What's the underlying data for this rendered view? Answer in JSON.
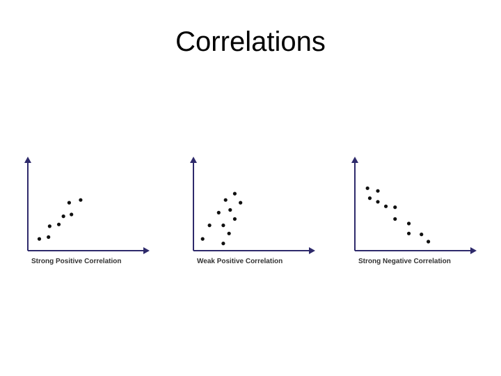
{
  "slide": {
    "title": "Correlations"
  },
  "colors": {
    "axis": "#2e2a6b",
    "point": "#111111",
    "caption": "#333333"
  },
  "chart_data": [
    {
      "type": "scatter",
      "title": "Strong Positive Correlation",
      "xlim": [
        0,
        10
      ],
      "ylim": [
        0,
        10
      ],
      "grid": false,
      "points": [
        [
          1.0,
          1.3
        ],
        [
          1.8,
          1.5
        ],
        [
          1.9,
          2.7
        ],
        [
          2.7,
          2.9
        ],
        [
          3.1,
          3.8
        ],
        [
          3.6,
          5.3
        ],
        [
          3.8,
          4.0
        ],
        [
          4.6,
          5.6
        ]
      ]
    },
    {
      "type": "scatter",
      "title": "Weak Positive Correlation",
      "xlim": [
        0,
        10
      ],
      "ylim": [
        0,
        10
      ],
      "grid": false,
      "points": [
        [
          0.8,
          1.3
        ],
        [
          1.4,
          2.8
        ],
        [
          2.2,
          4.2
        ],
        [
          2.6,
          0.8
        ],
        [
          2.6,
          2.8
        ],
        [
          2.8,
          5.6
        ],
        [
          3.1,
          1.9
        ],
        [
          3.2,
          4.5
        ],
        [
          3.6,
          6.3
        ],
        [
          3.6,
          3.5
        ],
        [
          4.1,
          5.3
        ]
      ]
    },
    {
      "type": "scatter",
      "title": "Strong Negative Correlation",
      "xlim": [
        0,
        10
      ],
      "ylim": [
        0,
        10
      ],
      "grid": false,
      "points": [
        [
          1.1,
          6.9
        ],
        [
          1.3,
          5.8
        ],
        [
          2.0,
          6.6
        ],
        [
          2.0,
          5.4
        ],
        [
          2.7,
          4.9
        ],
        [
          3.5,
          4.8
        ],
        [
          3.5,
          3.5
        ],
        [
          4.7,
          3.0
        ],
        [
          4.7,
          1.9
        ],
        [
          5.8,
          1.8
        ],
        [
          6.4,
          1.0
        ]
      ]
    }
  ]
}
